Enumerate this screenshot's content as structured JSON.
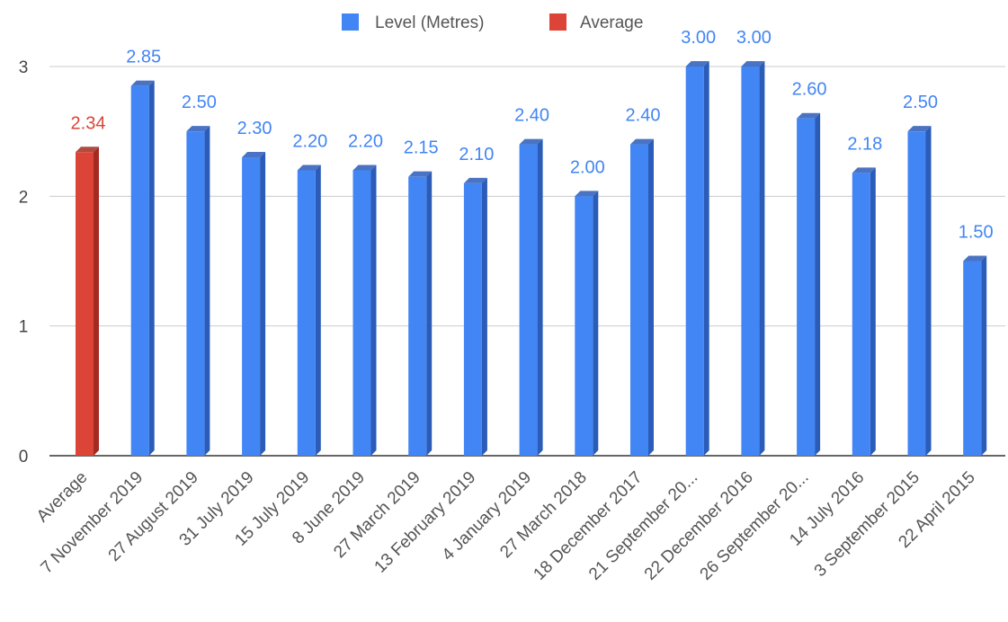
{
  "chart_data": {
    "type": "bar",
    "categories": [
      "Average",
      "7 November 2019",
      "27 August 2019",
      "31 July 2019",
      "15 July 2019",
      "8 June 2019",
      "27 March 2019",
      "13 February 2019",
      "4 January 2019",
      "27 March 2018",
      "18 December 2017",
      "21 September 20...",
      "22 December 2016",
      "26 September 20...",
      "14 July 2016",
      "3 September 2015",
      "22 April 2015"
    ],
    "values": [
      2.34,
      2.85,
      2.5,
      2.3,
      2.2,
      2.2,
      2.15,
      2.1,
      2.4,
      2.0,
      2.4,
      3.0,
      3.0,
      2.6,
      2.18,
      2.5,
      1.5
    ],
    "value_labels": [
      "2.34",
      "2.85",
      "2.50",
      "2.30",
      "2.20",
      "2.20",
      "2.15",
      "2.10",
      "2.40",
      "2.00",
      "2.40",
      "3.00",
      "3.00",
      "2.60",
      "2.18",
      "2.50",
      "1.50"
    ],
    "bar_series": [
      "Average",
      "Level (Metres)",
      "Level (Metres)",
      "Level (Metres)",
      "Level (Metres)",
      "Level (Metres)",
      "Level (Metres)",
      "Level (Metres)",
      "Level (Metres)",
      "Level (Metres)",
      "Level (Metres)",
      "Level (Metres)",
      "Level (Metres)",
      "Level (Metres)",
      "Level (Metres)",
      "Level (Metres)",
      "Level (Metres)"
    ],
    "series": [
      {
        "name": "Level (Metres)",
        "color": "#4285f4"
      },
      {
        "name": "Average",
        "color": "#db4437"
      }
    ],
    "title": "",
    "xlabel": "",
    "ylabel": "",
    "ylim": [
      0,
      3
    ],
    "y_ticks": [
      "0",
      "1",
      "2",
      "3"
    ],
    "grid": true,
    "legend_position": "top"
  }
}
